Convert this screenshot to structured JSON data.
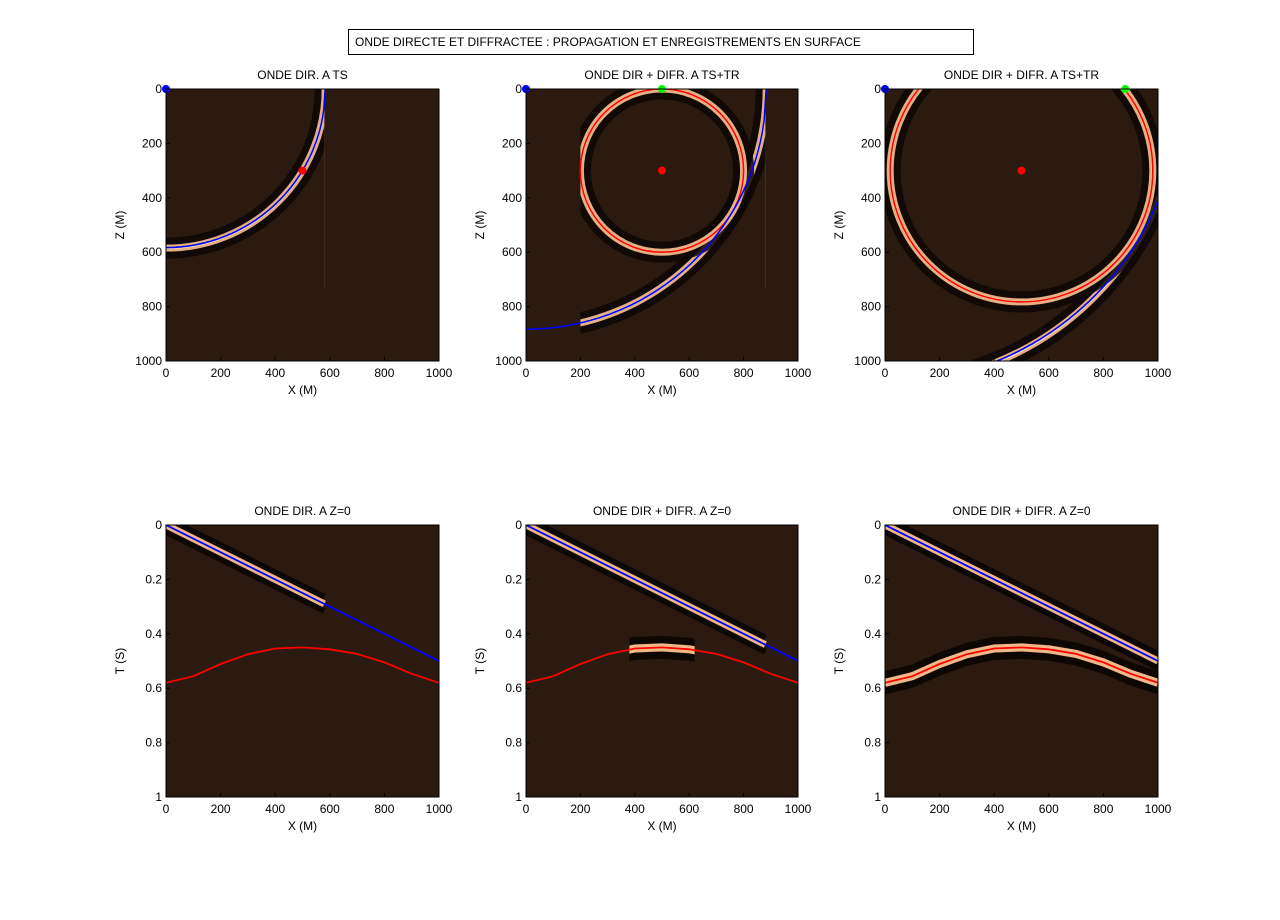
{
  "figure_title": "ONDE DIRECTE ET DIFFRACTEE : PROPAGATION ET ENREGISTREMENTS EN SURFACE",
  "colors": {
    "background_field": "#2b1a10",
    "wave_peak": "#f0b889",
    "wave_trough": "#0d0704",
    "direct_curve": "#0000ff",
    "diffracted_curve": "#ff0000",
    "source_marker": "#0000ff",
    "diffractor_marker": "#ff0000",
    "receiver_marker": "#00ff00"
  },
  "chart_data": [
    {
      "type": "heatmap",
      "panel": "snapshot-ts",
      "title": "ONDE DIR. A TS",
      "xlabel": "X (M)",
      "ylabel": "Z (M)",
      "xlim": [
        0,
        1000
      ],
      "ylim": [
        0,
        1000
      ],
      "y_reversed": true,
      "xticks": [
        "0",
        "200",
        "400",
        "600",
        "800",
        "1000"
      ],
      "yticks": [
        "0",
        "200",
        "400",
        "600",
        "800",
        "1000"
      ],
      "wave_window_x": [
        0,
        580
      ],
      "source": [
        0,
        0
      ],
      "diffractor": [
        500,
        300
      ],
      "receiver": null,
      "direct_front_radius": 583,
      "direct_front_x_range": [
        0,
        583
      ],
      "diffracted_front_radius": null
    },
    {
      "type": "heatmap",
      "panel": "snapshot-ts-tr-1",
      "title": "ONDE DIR + DIFR.  A TS+TR",
      "xlabel": "X (M)",
      "ylabel": "Z (M)",
      "xlim": [
        0,
        1000
      ],
      "ylim": [
        0,
        1000
      ],
      "y_reversed": true,
      "xticks": [
        "0",
        "200",
        "400",
        "600",
        "800",
        "1000"
      ],
      "yticks": [
        "0",
        "200",
        "400",
        "600",
        "800",
        "1000"
      ],
      "wave_window_x": [
        200,
        880
      ],
      "source": [
        0,
        0
      ],
      "diffractor": [
        500,
        300
      ],
      "receiver": [
        500,
        0
      ],
      "direct_front_radius": 883,
      "direct_front_x_range": [
        0,
        883
      ],
      "diffracted_front_radius": 300
    },
    {
      "type": "heatmap",
      "panel": "snapshot-ts-tr-2",
      "title": "ONDE DIR + DIFR.  A TS+TR",
      "xlabel": "X (M)",
      "ylabel": "Z (M)",
      "xlim": [
        0,
        1000
      ],
      "ylim": [
        0,
        1000
      ],
      "y_reversed": true,
      "xticks": [
        "0",
        "200",
        "400",
        "600",
        "800",
        "1000"
      ],
      "yticks": [
        "0",
        "200",
        "400",
        "600",
        "800",
        "1000"
      ],
      "wave_window_x": [
        0,
        1000
      ],
      "source": [
        0,
        0
      ],
      "diffractor": [
        500,
        300
      ],
      "receiver": [
        880,
        0
      ],
      "direct_front_radius": 1081,
      "direct_front_x_range": [
        0,
        1000
      ],
      "diffracted_front_radius": 481
    },
    {
      "type": "heatmap",
      "panel": "record-direct",
      "title": "ONDE DIR. A Z=0",
      "xlabel": "X (M)",
      "ylabel": "T (S)",
      "xlim": [
        0,
        1000
      ],
      "ylim": [
        0,
        1
      ],
      "y_reversed": true,
      "xticks": [
        "0",
        "200",
        "400",
        "600",
        "800",
        "1000"
      ],
      "yticks": [
        "0",
        "0.2",
        "0.4",
        "0.6",
        "0.8",
        "1"
      ],
      "velocity": 2000,
      "direct_arrival": {
        "x": [
          0,
          1000
        ],
        "t": [
          0,
          0.5
        ]
      },
      "diffraction_curve": {
        "x": [
          0,
          100,
          200,
          300,
          400,
          500,
          600,
          700,
          800,
          900,
          1000
        ],
        "t": [
          0.58,
          0.556,
          0.511,
          0.475,
          0.454,
          0.45,
          0.457,
          0.474,
          0.505,
          0.547,
          0.58
        ]
      },
      "direct_event_x_range": [
        0,
        580
      ],
      "diffraction_event_x_range": null
    },
    {
      "type": "heatmap",
      "panel": "record-combined-1",
      "title": "ONDE DIR + DIFR.  A Z=0",
      "xlabel": "X (M)",
      "ylabel": "T (S)",
      "xlim": [
        0,
        1000
      ],
      "ylim": [
        0,
        1
      ],
      "y_reversed": true,
      "xticks": [
        "0",
        "200",
        "400",
        "600",
        "800",
        "1000"
      ],
      "yticks": [
        "0",
        "0.2",
        "0.4",
        "0.6",
        "0.8",
        "1"
      ],
      "velocity": 2000,
      "direct_arrival": {
        "x": [
          0,
          1000
        ],
        "t": [
          0,
          0.5
        ]
      },
      "diffraction_curve": {
        "x": [
          0,
          100,
          200,
          300,
          400,
          500,
          600,
          700,
          800,
          900,
          1000
        ],
        "t": [
          0.58,
          0.556,
          0.511,
          0.475,
          0.454,
          0.45,
          0.457,
          0.474,
          0.505,
          0.547,
          0.58
        ]
      },
      "direct_event_x_range": [
        0,
        880
      ],
      "diffraction_event_x_range": [
        380,
        620
      ]
    },
    {
      "type": "heatmap",
      "panel": "record-combined-2",
      "title": "ONDE DIR + DIFR.  A Z=0",
      "xlabel": "X (M)",
      "ylabel": "T (S)",
      "xlim": [
        0,
        1000
      ],
      "ylim": [
        0,
        1
      ],
      "y_reversed": true,
      "xticks": [
        "0",
        "200",
        "400",
        "600",
        "800",
        "1000"
      ],
      "yticks": [
        "0",
        "0.2",
        "0.4",
        "0.6",
        "0.8",
        "1"
      ],
      "velocity": 2000,
      "direct_arrival": {
        "x": [
          0,
          1000
        ],
        "t": [
          0,
          0.5
        ]
      },
      "diffraction_curve": {
        "x": [
          0,
          100,
          200,
          300,
          400,
          500,
          600,
          700,
          800,
          900,
          1000
        ],
        "t": [
          0.58,
          0.556,
          0.511,
          0.475,
          0.454,
          0.45,
          0.457,
          0.474,
          0.505,
          0.547,
          0.58
        ]
      },
      "direct_event_x_range": [
        0,
        1000
      ],
      "diffraction_event_x_range": [
        0,
        1000
      ]
    }
  ]
}
